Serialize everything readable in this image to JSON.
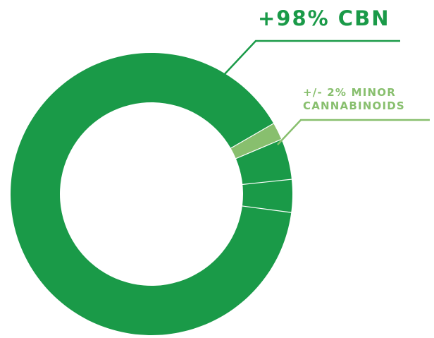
{
  "chart_data": {
    "type": "pie",
    "title": "",
    "slices": [
      {
        "label": "+98% CBN",
        "value": 98,
        "color": "#1a9a48"
      },
      {
        "label": "+/- 2% MINOR CANNABINOIDS",
        "value": 2,
        "color": "#88bf6e"
      }
    ]
  },
  "annotations": {
    "main_label": "+98% CBN",
    "minor_label_line1": "+/- 2% MINOR",
    "minor_label_line2": "CANNABINOIDS"
  },
  "colors": {
    "main": "#1a9a48",
    "minor": "#88bf6e",
    "divider": "#ffffff"
  }
}
